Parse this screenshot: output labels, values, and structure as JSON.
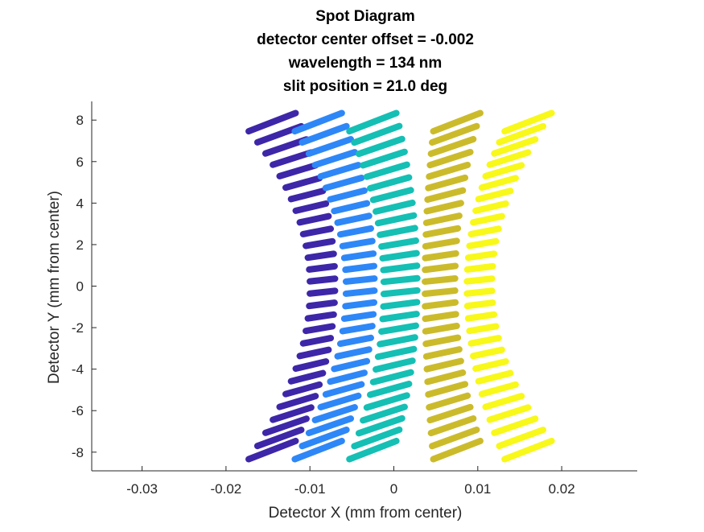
{
  "chart_data": {
    "type": "scatter",
    "title": [
      "Spot Diagram",
      "detector center offset = -0.002",
      "wavelength = 134 nm",
      "slit position = 21.0 deg"
    ],
    "xlabel": "Detector X (mm from center)",
    "ylabel": "Detector Y (mm from center)",
    "xlim": [
      -0.036,
      0.029
    ],
    "ylim": [
      -8.9,
      8.9
    ],
    "x_ticks": [
      -0.03,
      -0.02,
      -0.01,
      0,
      0.01,
      0.02
    ],
    "x_tick_labels": [
      "-0.03",
      "-0.02",
      "-0.01",
      "0",
      "0.01",
      "0.02"
    ],
    "y_ticks": [
      -8,
      -6,
      -4,
      -2,
      0,
      2,
      4,
      6,
      8
    ],
    "y_tick_labels": [
      "-8",
      "-6",
      "-4",
      "-2",
      "0",
      "2",
      "4",
      "6",
      "8"
    ],
    "grid": false,
    "legend": "none",
    "series": [
      {
        "color": "#3e26a8",
        "center_x": -0.0085,
        "edge_x_at_ymax": -0.0145,
        "center_half_width": 0.0015,
        "edge_half_width": 0.0028,
        "y_min": -7.9,
        "y_max": 7.9,
        "rows": 28
      },
      {
        "color": "#2e87f7",
        "center_x": -0.004,
        "edge_x_at_ymax": -0.009,
        "center_half_width": 0.0017,
        "edge_half_width": 0.0028,
        "y_min": -7.9,
        "y_max": 7.9,
        "rows": 28
      },
      {
        "color": "#15bfb4",
        "center_x": 0.0008,
        "edge_x_at_ymax": -0.0025,
        "center_half_width": 0.002,
        "edge_half_width": 0.0028,
        "y_min": -7.9,
        "y_max": 7.9,
        "rows": 28
      },
      {
        "color": "#cbbb2b",
        "center_x": 0.0055,
        "edge_x_at_ymax": 0.0075,
        "center_half_width": 0.0018,
        "edge_half_width": 0.0028,
        "y_min": -7.9,
        "y_max": 7.9,
        "rows": 28
      },
      {
        "color": "#f8f81a",
        "center_x": 0.0102,
        "edge_x_at_ymax": 0.016,
        "center_half_width": 0.0015,
        "edge_half_width": 0.0028,
        "y_min": -7.9,
        "y_max": 7.9,
        "rows": 28
      }
    ]
  }
}
